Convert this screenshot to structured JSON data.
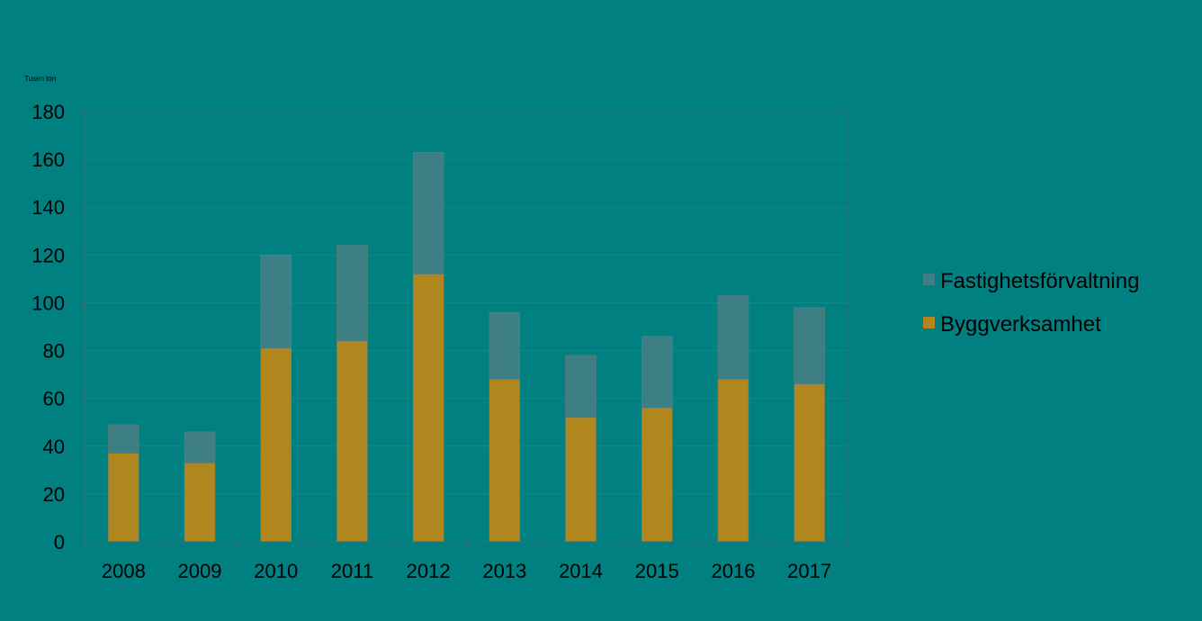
{
  "colors": {
    "background": "#008080",
    "byggverksamhet": "#B0861E",
    "fastighetsforvaltning": "#3E7F86",
    "text": "#000000",
    "axis": "#3A6F73"
  },
  "chart_data": {
    "type": "bar",
    "stacked": true,
    "title": "",
    "xlabel": "",
    "ylabel": "Tusen ton",
    "ylim": [
      0,
      180
    ],
    "yticks": [
      0,
      20,
      40,
      60,
      80,
      100,
      120,
      140,
      160,
      180
    ],
    "categories": [
      "2008",
      "2009",
      "2010",
      "2011",
      "2012",
      "2013",
      "2014",
      "2015",
      "2016",
      "2017"
    ],
    "series": [
      {
        "name": "Byggverksamhet",
        "values": [
          37,
          33,
          81,
          84,
          112,
          68,
          52,
          56,
          68,
          66
        ]
      },
      {
        "name": "Fastighetsförvaltning",
        "values": [
          12,
          13,
          39,
          40,
          51,
          28,
          26,
          30,
          35,
          32
        ]
      }
    ],
    "legend_position": "right",
    "legend_order": [
      "Fastighetsförvaltning",
      "Byggverksamhet"
    ],
    "grid": true
  }
}
